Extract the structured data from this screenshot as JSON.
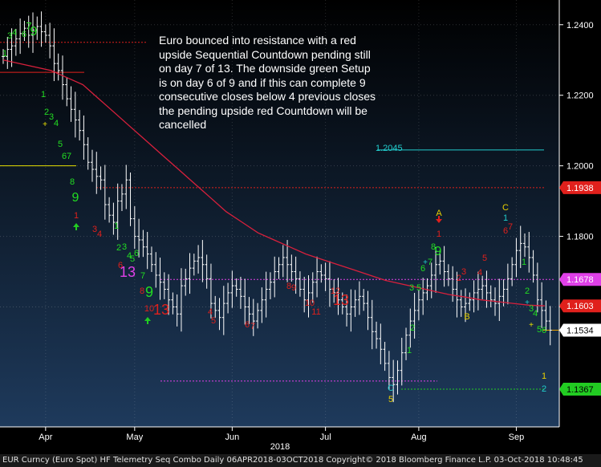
{
  "chart_data": {
    "type": "bar",
    "subtype": "ohlc",
    "title": "",
    "xlabel": "2018",
    "ylabel": "",
    "ylim": [
      1.126,
      1.247
    ],
    "x_ticks": [
      "Apr",
      "May",
      "Jun",
      "Jul",
      "Aug",
      "Sep"
    ],
    "y_ticks": [
      {
        "value": 1.24,
        "label": "1.2400"
      },
      {
        "value": 1.22,
        "label": "1.2200"
      },
      {
        "value": 1.2,
        "label": "1.2000"
      },
      {
        "value": 1.18,
        "label": "1.1800"
      },
      {
        "value": 1.16,
        "label": "1.1600"
      }
    ],
    "price_labels": [
      {
        "value": 1.1938,
        "label": "1.1938",
        "bg": "#e0201c",
        "fg": "#ffffff"
      },
      {
        "value": 1.1678,
        "label": "1.1678",
        "bg": "#e040e8",
        "fg": "#ffffff"
      },
      {
        "value": 1.1603,
        "label": "1.1603",
        "bg": "#e0201c",
        "fg": "#ffffff"
      },
      {
        "value": 1.1534,
        "label": "1.1534",
        "bg": "#ffffff",
        "fg": "#000000"
      },
      {
        "value": 1.1367,
        "label": "1.1367",
        "bg": "#22cc22",
        "fg": "#000000"
      }
    ],
    "resistance_label": {
      "value": 1.2045,
      "text": "1.2045"
    },
    "annotation": "Euro bounced into resistance with a red upside Sequential Countdown pending still on day 7 of 13. The downside green Setup is on day 6 of 9 and if this can complete 9 consecutive closes below 4 previous closes the pending upside red Countdown will be cancelled",
    "series": [
      {
        "name": "",
        "values": [
          1.231,
          1.233,
          1.234,
          1.236,
          1.2375,
          1.239,
          1.237,
          1.2385,
          1.2395,
          1.238,
          1.237,
          1.234,
          1.229,
          1.227,
          1.223,
          1.219,
          1.216,
          1.213,
          1.21,
          1.206,
          1.201,
          1.199,
          1.197,
          1.196,
          1.189,
          1.186,
          1.184,
          1.19,
          1.192,
          1.196,
          1.185,
          1.18,
          1.179,
          1.177,
          1.175,
          1.172,
          1.169,
          1.167,
          1.165,
          1.162,
          1.16,
          1.158,
          1.166,
          1.168,
          1.171,
          1.173,
          1.174,
          1.172,
          1.168,
          1.161,
          1.159,
          1.157,
          1.161,
          1.164,
          1.166,
          1.165,
          1.163,
          1.16,
          1.158,
          1.156,
          1.159,
          1.162,
          1.165,
          1.167,
          1.17,
          1.172,
          1.174,
          1.172,
          1.17,
          1.168,
          1.165,
          1.162,
          1.164,
          1.167,
          1.17,
          1.169,
          1.168,
          1.165,
          1.164,
          1.162,
          1.16,
          1.158,
          1.16,
          1.162,
          1.163,
          1.161,
          1.157,
          1.153,
          1.151,
          1.148,
          1.144,
          1.14,
          1.138,
          1.142,
          1.147,
          1.152,
          1.156,
          1.159,
          1.162,
          1.164,
          1.166,
          1.169,
          1.172,
          1.173,
          1.17,
          1.168,
          1.165,
          1.162,
          1.16,
          1.161,
          1.162,
          1.164,
          1.165,
          1.166,
          1.164,
          1.162,
          1.161,
          1.163,
          1.165,
          1.168,
          1.172,
          1.176,
          1.178,
          1.177,
          1.174,
          1.169,
          1.162,
          1.159,
          1.156,
          1.1534
        ]
      },
      {
        "name": "",
        "values": [
          1.23,
          1.229,
          1.228,
          1.227,
          1.225,
          1.223,
          1.219,
          1.215,
          1.211,
          1.207,
          1.203,
          1.199,
          1.195,
          1.191,
          1.187,
          1.184,
          1.181,
          1.179,
          1.177,
          1.175,
          1.1735,
          1.172,
          1.1705,
          1.169,
          1.1675,
          1.1665,
          1.1655,
          1.1645,
          1.1635,
          1.1628,
          1.162,
          1.1615,
          1.161,
          1.1605,
          1.1603
        ]
      }
    ],
    "countdown_labels": [
      {
        "text": "1",
        "color": "#22dd22"
      },
      {
        "text": "3",
        "color": "#22dd22"
      },
      {
        "text": "4",
        "color": "#22dd22"
      },
      {
        "text": "6",
        "color": "#22dd22"
      },
      {
        "text": "7",
        "color": "#22dd22"
      },
      {
        "text": "9",
        "color": "#22dd22"
      },
      {
        "text": "1",
        "color": "#22dd22"
      },
      {
        "text": "2",
        "color": "#22dd22"
      },
      {
        "text": "3",
        "color": "#22dd22"
      },
      {
        "text": "4",
        "color": "#22dd22"
      },
      {
        "text": "5",
        "color": "#22dd22"
      },
      {
        "text": "6",
        "color": "#22dd22"
      },
      {
        "text": "7",
        "color": "#22dd22"
      },
      {
        "text": "8",
        "color": "#22dd22"
      },
      {
        "text": "9",
        "color": "#22dd22"
      },
      {
        "text": "1",
        "color": "#e0201c"
      },
      {
        "text": "3",
        "color": "#e0201c"
      },
      {
        "text": "4",
        "color": "#e0201c"
      },
      {
        "text": "1",
        "color": "#22dd22"
      },
      {
        "text": "2",
        "color": "#22dd22"
      },
      {
        "text": "3",
        "color": "#22dd22"
      },
      {
        "text": "4",
        "color": "#22dd22"
      },
      {
        "text": "5",
        "color": "#22dd22"
      },
      {
        "text": "6",
        "color": "#22dd22"
      },
      {
        "text": "6",
        "color": "#e0201c"
      },
      {
        "text": "13",
        "color": "#e040e8"
      },
      {
        "text": "7",
        "color": "#22dd22"
      },
      {
        "text": "8",
        "color": "#e0201c"
      },
      {
        "text": "9",
        "color": "#22dd22"
      },
      {
        "text": "10",
        "color": "#e0201c"
      },
      {
        "text": "13",
        "color": "#e0201c"
      },
      {
        "text": "4",
        "color": "#e0201c"
      },
      {
        "text": "5",
        "color": "#e0201c"
      },
      {
        "text": "6",
        "color": "#e0201c"
      },
      {
        "text": "7",
        "color": "#e0201c"
      },
      {
        "text": "8",
        "color": "#e0201c"
      },
      {
        "text": "9",
        "color": "#e0201c"
      },
      {
        "text": "10",
        "color": "#e0201c"
      },
      {
        "text": "11",
        "color": "#e0201c"
      },
      {
        "text": "12",
        "color": "#e0201c"
      },
      {
        "text": "13",
        "color": "#e0201c"
      },
      {
        "text": "C",
        "color": "#22cccc"
      },
      {
        "text": "5",
        "color": "#e8d000"
      },
      {
        "text": "1",
        "color": "#22dd22"
      },
      {
        "text": "2",
        "color": "#22dd22"
      },
      {
        "text": "3",
        "color": "#22dd22"
      },
      {
        "text": "5",
        "color": "#22dd22"
      },
      {
        "text": "6",
        "color": "#22dd22"
      },
      {
        "text": "7",
        "color": "#22dd22"
      },
      {
        "text": "8",
        "color": "#22dd22"
      },
      {
        "text": "9",
        "color": "#22dd22"
      },
      {
        "text": "A",
        "color": "#e8d000"
      },
      {
        "text": "1",
        "color": "#e0201c"
      },
      {
        "text": "2",
        "color": "#e0201c"
      },
      {
        "text": "3",
        "color": "#e0201c"
      },
      {
        "text": "B",
        "color": "#e8d000"
      },
      {
        "text": "4",
        "color": "#e0201c"
      },
      {
        "text": "5",
        "color": "#e0201c"
      },
      {
        "text": "6",
        "color": "#e0201c"
      },
      {
        "text": "7",
        "color": "#e0201c"
      },
      {
        "text": "C",
        "color": "#e8d000"
      },
      {
        "text": "1",
        "color": "#22cccc"
      },
      {
        "text": "1",
        "color": "#22dd22"
      },
      {
        "text": "2",
        "color": "#22dd22"
      },
      {
        "text": "3",
        "color": "#22dd22"
      },
      {
        "text": "4",
        "color": "#22dd22"
      },
      {
        "text": "5",
        "color": "#22dd22"
      },
      {
        "text": "6",
        "color": "#22dd22"
      },
      {
        "text": "1",
        "color": "#e8d000"
      },
      {
        "text": "2",
        "color": "#22cccc"
      }
    ],
    "colors": {
      "background_top": "#000000",
      "background_bottom": "#1e3a5c",
      "bars": "#ffffff",
      "moving_average": "#d8203c",
      "resistance": "#22cccc",
      "magenta": "#e040e8",
      "green": "#22cc22",
      "yellow": "#e8e000",
      "red_dashed": "#e0201c"
    },
    "grid": true,
    "legend": "none"
  },
  "footer": "EUR Curncy (Euro Spot) HF Telemetry Seq Combo  Daily 06APR2018-03OCT2018  Copyright© 2018 Bloomberg Finance L.P.  03-Oct-2018 10:48:45"
}
